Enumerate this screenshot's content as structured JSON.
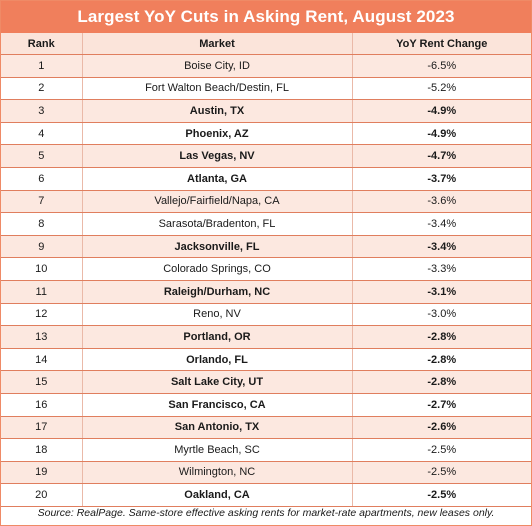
{
  "colors": {
    "title_background": "#f07f5c",
    "title_text": "#ffffff",
    "header_background": "#fbe4da",
    "row_shaded": "#fce8e0",
    "row_plain": "#ffffff",
    "border": "#e07e5e"
  },
  "chart_data": {
    "type": "table",
    "title": "Largest YoY Cuts in Asking Rent, August 2023",
    "columns": [
      "Rank",
      "Market",
      "YoY Rent Change"
    ],
    "rows": [
      {
        "rank": "1",
        "market": "Boise City, ID",
        "change": "-6.5%",
        "bold": false
      },
      {
        "rank": "2",
        "market": "Fort Walton Beach/Destin, FL",
        "change": "-5.2%",
        "bold": false
      },
      {
        "rank": "3",
        "market": "Austin, TX",
        "change": "-4.9%",
        "bold": true
      },
      {
        "rank": "4",
        "market": "Phoenix, AZ",
        "change": "-4.9%",
        "bold": true
      },
      {
        "rank": "5",
        "market": "Las Vegas, NV",
        "change": "-4.7%",
        "bold": true
      },
      {
        "rank": "6",
        "market": "Atlanta, GA",
        "change": "-3.7%",
        "bold": true
      },
      {
        "rank": "7",
        "market": "Vallejo/Fairfield/Napa, CA",
        "change": "-3.6%",
        "bold": false
      },
      {
        "rank": "8",
        "market": "Sarasota/Bradenton, FL",
        "change": "-3.4%",
        "bold": false
      },
      {
        "rank": "9",
        "market": "Jacksonville, FL",
        "change": "-3.4%",
        "bold": true
      },
      {
        "rank": "10",
        "market": "Colorado Springs, CO",
        "change": "-3.3%",
        "bold": false
      },
      {
        "rank": "11",
        "market": "Raleigh/Durham, NC",
        "change": "-3.1%",
        "bold": true
      },
      {
        "rank": "12",
        "market": "Reno, NV",
        "change": "-3.0%",
        "bold": false
      },
      {
        "rank": "13",
        "market": "Portland, OR",
        "change": "-2.8%",
        "bold": true
      },
      {
        "rank": "14",
        "market": "Orlando, FL",
        "change": "-2.8%",
        "bold": true
      },
      {
        "rank": "15",
        "market": "Salt Lake City, UT",
        "change": "-2.8%",
        "bold": true
      },
      {
        "rank": "16",
        "market": "San Francisco, CA",
        "change": "-2.7%",
        "bold": true
      },
      {
        "rank": "17",
        "market": "San Antonio, TX",
        "change": "-2.6%",
        "bold": true
      },
      {
        "rank": "18",
        "market": "Myrtle Beach, SC",
        "change": "-2.5%",
        "bold": false
      },
      {
        "rank": "19",
        "market": "Wilmington, NC",
        "change": "-2.5%",
        "bold": false
      },
      {
        "rank": "20",
        "market": "Oakland, CA",
        "change": "-2.5%",
        "bold": true
      }
    ],
    "source": "Source: RealPage. Same-store effective asking rents for market-rate apartments, new leases only."
  }
}
